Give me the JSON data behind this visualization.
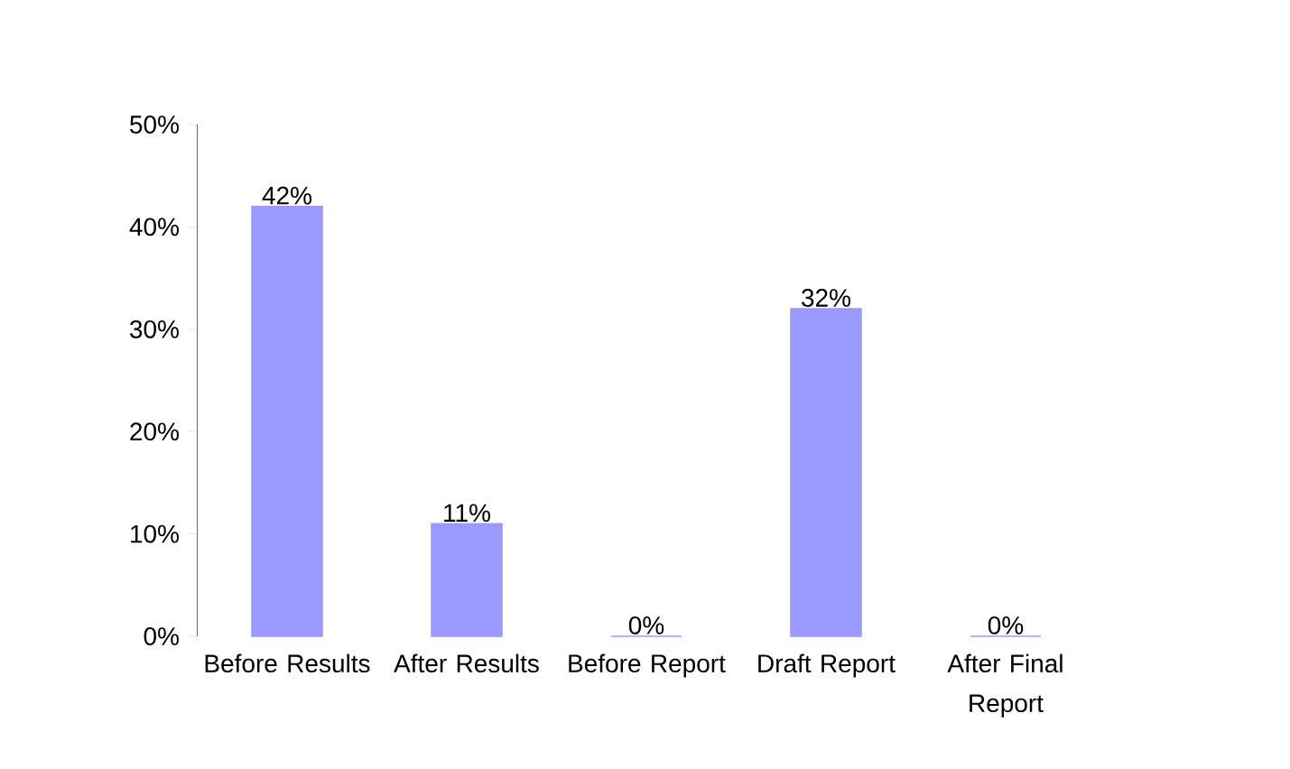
{
  "chart_data": {
    "type": "bar",
    "categories": [
      "Before Results",
      "After Results",
      "Before Report",
      "Draft Report",
      "After Final Report"
    ],
    "values": [
      42,
      11,
      0,
      32,
      0
    ],
    "value_labels": [
      "42%",
      "11%",
      "0%",
      "32%",
      "0%"
    ],
    "color": "#9999ff",
    "ylim": [
      0,
      50
    ],
    "yticks": [
      {
        "value": 0,
        "label": "0%"
      },
      {
        "value": 10,
        "label": "10%"
      },
      {
        "value": 20,
        "label": "20%"
      },
      {
        "value": 30,
        "label": "30%"
      },
      {
        "value": 40,
        "label": "40%"
      },
      {
        "value": 50,
        "label": "50%"
      }
    ],
    "grid": false
  }
}
